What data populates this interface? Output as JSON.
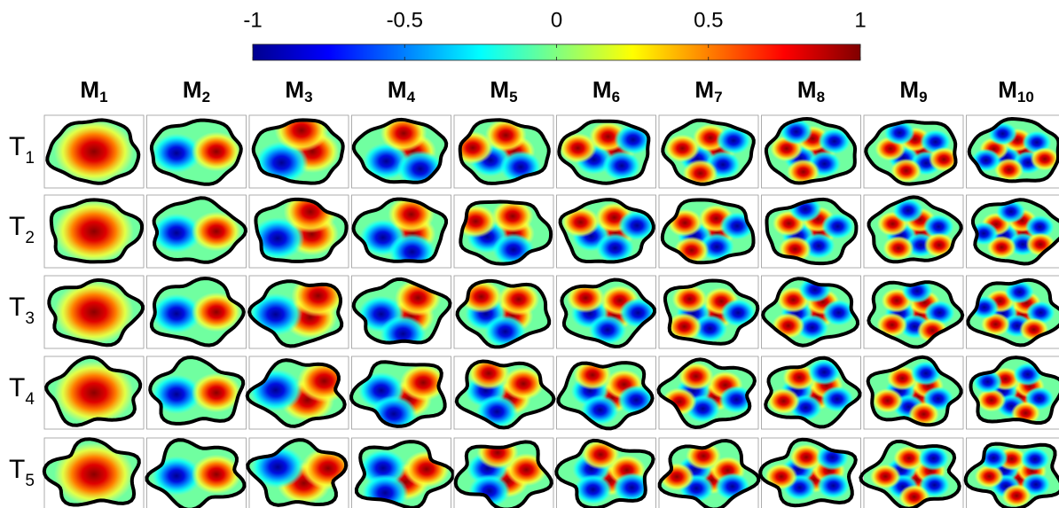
{
  "colorbar": {
    "lim": [
      -1,
      1
    ],
    "ticks": [
      -1,
      -0.5,
      0,
      0.5,
      1
    ]
  },
  "columns": [
    {
      "name": "M",
      "index": "1"
    },
    {
      "name": "M",
      "index": "2"
    },
    {
      "name": "M",
      "index": "3"
    },
    {
      "name": "M",
      "index": "4"
    },
    {
      "name": "M",
      "index": "5"
    },
    {
      "name": "M",
      "index": "6"
    },
    {
      "name": "M",
      "index": "7"
    },
    {
      "name": "M",
      "index": "8"
    },
    {
      "name": "M",
      "index": "9"
    },
    {
      "name": "M",
      "index": "10"
    }
  ],
  "rows": [
    {
      "name": "T",
      "index": "1"
    },
    {
      "name": "T",
      "index": "2"
    },
    {
      "name": "T",
      "index": "3"
    },
    {
      "name": "T",
      "index": "4"
    },
    {
      "name": "T",
      "index": "5"
    }
  ]
}
